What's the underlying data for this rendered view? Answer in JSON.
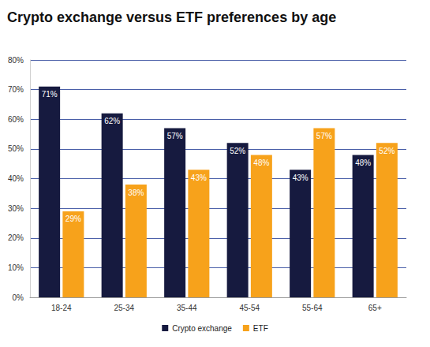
{
  "chart_data": {
    "type": "bar",
    "title": "Crypto exchange versus ETF preferences by age",
    "categories": [
      "18-24",
      "25-34",
      "35-44",
      "45-54",
      "55-64",
      "65+"
    ],
    "series": [
      {
        "name": "Crypto exchange",
        "color": "#161a3f",
        "values": [
          71,
          62,
          57,
          52,
          43,
          48
        ],
        "value_labels": [
          "71%",
          "62%",
          "57%",
          "52%",
          "43%",
          "48%"
        ]
      },
      {
        "name": "ETF",
        "color": "#f7a21b",
        "values": [
          29,
          38,
          43,
          48,
          57,
          52
        ],
        "value_labels": [
          "29%",
          "38%",
          "43%",
          "48%",
          "57%",
          "52%"
        ]
      }
    ],
    "ylim": [
      0,
      80
    ],
    "yticks": [
      {
        "value": 0,
        "label": "0%"
      },
      {
        "value": 10,
        "label": "10%"
      },
      {
        "value": 20,
        "label": "20%"
      },
      {
        "value": 30,
        "label": "30%"
      },
      {
        "value": 40,
        "label": "40%"
      },
      {
        "value": 50,
        "label": "50%"
      },
      {
        "value": 60,
        "label": "60%"
      },
      {
        "value": 70,
        "label": "70%"
      },
      {
        "value": 80,
        "label": "80%"
      }
    ],
    "grid": true,
    "legend": "bottom",
    "data_labels": true
  }
}
